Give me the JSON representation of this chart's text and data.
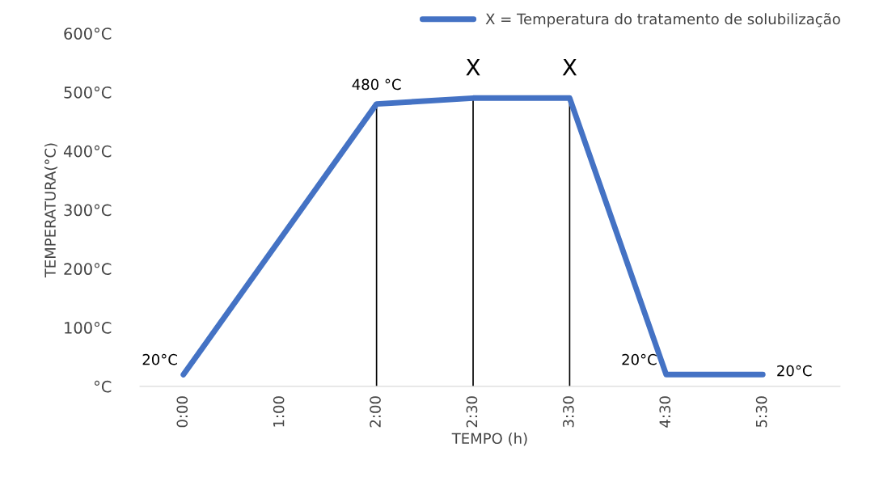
{
  "chart_data": {
    "type": "line",
    "xlabel": "TEMPO (h)",
    "ylabel": "TEMPERATURA(°C)",
    "categories": [
      "0:00",
      "1:00",
      "2:00",
      "2:30",
      "3:30",
      "4:30",
      "5:30"
    ],
    "series": [
      {
        "name": "X = Temperatura do tratamento de solubilização",
        "color": "#4472c4",
        "values": [
          20,
          250,
          480,
          490,
          490,
          20,
          20
        ]
      }
    ],
    "ylim": [
      0,
      600
    ],
    "yticks": [
      {
        "value": 0,
        "label": "°C"
      },
      {
        "value": 100,
        "label": "100°C"
      },
      {
        "value": 200,
        "label": "200°C"
      },
      {
        "value": 300,
        "label": "300°C"
      },
      {
        "value": 400,
        "label": "400°C"
      },
      {
        "value": 500,
        "label": "500°C"
      },
      {
        "value": 600,
        "label": "600°C"
      }
    ],
    "ref_lines": [
      {
        "axis": "x",
        "value": "2:00",
        "color": "#000000"
      },
      {
        "axis": "x",
        "value": "2:30",
        "color": "#000000"
      },
      {
        "axis": "x",
        "value": "3:30",
        "color": "#000000"
      }
    ],
    "annotations": [
      {
        "text": "20°C",
        "x": "0:00",
        "y": 20
      },
      {
        "text": "480 °C",
        "x": "2:00",
        "y": 480
      },
      {
        "text": "X",
        "x": "2:30",
        "y": 490
      },
      {
        "text": "X",
        "x": "3:30",
        "y": 490
      },
      {
        "text": "20°C",
        "x": "4:30",
        "y": 20
      },
      {
        "text": "20°C",
        "x": "5:30",
        "y": 20
      }
    ],
    "grid": false,
    "legend": "top right",
    "marker": "none",
    "line_style": "solid"
  }
}
